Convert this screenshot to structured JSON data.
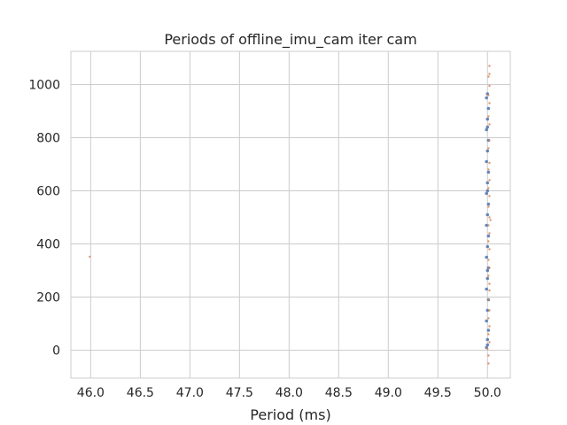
{
  "chart_data": {
    "type": "scatter",
    "title": "Periods of offline_imu_cam iter cam",
    "xlabel": "Period (ms)",
    "ylabel": "",
    "xlim": [
      45.8,
      50.23
    ],
    "ylim": [
      -105,
      1125
    ],
    "xticks": [
      46.0,
      46.5,
      47.0,
      47.5,
      48.0,
      48.5,
      49.0,
      49.5,
      50.0
    ],
    "xtick_labels": [
      "46.0",
      "46.5",
      "47.0",
      "47.5",
      "48.0",
      "48.5",
      "49.0",
      "49.5",
      "50.0"
    ],
    "yticks": [
      0,
      200,
      400,
      600,
      800,
      1000
    ],
    "ytick_labels": [
      "0",
      "200",
      "400",
      "600",
      "800",
      "1000"
    ],
    "grid": true,
    "legend": "none",
    "series": [
      {
        "kind": "scatter",
        "color": "#4c72b0",
        "points": [
          [
            49.99,
            10
          ],
          [
            50.0,
            40
          ],
          [
            50.01,
            75
          ],
          [
            49.99,
            110
          ],
          [
            50.0,
            150
          ],
          [
            50.01,
            190
          ],
          [
            49.99,
            230
          ],
          [
            50.0,
            270
          ],
          [
            50.01,
            310
          ],
          [
            49.99,
            350
          ],
          [
            50.0,
            390
          ],
          [
            50.01,
            430
          ],
          [
            49.99,
            470
          ],
          [
            50.0,
            510
          ],
          [
            50.01,
            550
          ],
          [
            49.99,
            590
          ],
          [
            50.0,
            630
          ],
          [
            50.01,
            670
          ],
          [
            49.99,
            710
          ],
          [
            50.0,
            750
          ],
          [
            50.01,
            790
          ],
          [
            49.99,
            830
          ],
          [
            50.0,
            870
          ],
          [
            50.01,
            910
          ],
          [
            49.99,
            950
          ],
          [
            50.0,
            965
          ],
          [
            50.0,
            20
          ],
          [
            50.0,
            300
          ],
          [
            50.0,
            600
          ],
          [
            50.0,
            840
          ]
        ]
      },
      {
        "kind": "scatter",
        "color": "#dd8452",
        "points": [
          [
            45.99,
            352
          ],
          [
            50.02,
            1070
          ],
          [
            50.02,
            1040
          ],
          [
            50.01,
            1030
          ],
          [
            50.02,
            995
          ],
          [
            50.01,
            960
          ],
          [
            50.02,
            930
          ],
          [
            50.01,
            880
          ],
          [
            50.02,
            850
          ],
          [
            50.02,
            790
          ],
          [
            50.01,
            760
          ],
          [
            50.02,
            705
          ],
          [
            50.01,
            680
          ],
          [
            50.02,
            640
          ],
          [
            50.01,
            610
          ],
          [
            50.02,
            580
          ],
          [
            50.01,
            540
          ],
          [
            50.02,
            500
          ],
          [
            50.03,
            490
          ],
          [
            50.01,
            470
          ],
          [
            50.02,
            440
          ],
          [
            50.01,
            410
          ],
          [
            50.02,
            380
          ],
          [
            50.01,
            340
          ],
          [
            50.02,
            310
          ],
          [
            50.01,
            280
          ],
          [
            50.02,
            250
          ],
          [
            50.02,
            225
          ],
          [
            50.01,
            190
          ],
          [
            50.02,
            150
          ],
          [
            50.01,
            120
          ],
          [
            50.02,
            90
          ],
          [
            50.01,
            60
          ],
          [
            50.02,
            30
          ],
          [
            50.0,
            5
          ],
          [
            50.01,
            -20
          ],
          [
            50.01,
            -50
          ]
        ]
      }
    ]
  }
}
